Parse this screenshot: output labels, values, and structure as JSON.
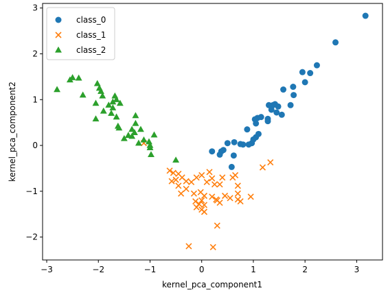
{
  "chart_data": {
    "type": "scatter",
    "title": "",
    "xlabel": "kernel_pca_component1",
    "ylabel": "kernel_pca_component2",
    "xlim": [
      -3.08,
      3.5
    ],
    "ylim": [
      -2.5,
      3.1
    ],
    "xticks": [
      -3,
      -2,
      -1,
      0,
      1,
      2,
      3
    ],
    "yticks": [
      -2,
      -1,
      0,
      1,
      2,
      3
    ],
    "grid": false,
    "legend_position": "top-left",
    "series": [
      {
        "name": "class_0",
        "marker": "circle",
        "color": "#1f77b4",
        "points": [
          [
            3.17,
            2.83
          ],
          [
            2.59,
            2.25
          ],
          [
            2.23,
            1.75
          ],
          [
            2.1,
            1.58
          ],
          [
            1.95,
            1.6
          ],
          [
            2.0,
            1.38
          ],
          [
            1.77,
            1.28
          ],
          [
            1.58,
            1.22
          ],
          [
            1.78,
            1.1
          ],
          [
            1.72,
            0.88
          ],
          [
            1.42,
            0.9
          ],
          [
            1.38,
            0.88
          ],
          [
            1.3,
            0.88
          ],
          [
            1.48,
            0.85
          ],
          [
            1.35,
            0.78
          ],
          [
            1.45,
            0.72
          ],
          [
            1.55,
            0.67
          ],
          [
            1.28,
            0.58
          ],
          [
            1.28,
            0.53
          ],
          [
            1.15,
            0.62
          ],
          [
            1.08,
            0.6
          ],
          [
            1.03,
            0.57
          ],
          [
            1.05,
            0.48
          ],
          [
            0.88,
            0.35
          ],
          [
            1.1,
            0.25
          ],
          [
            1.05,
            0.18
          ],
          [
            1.0,
            0.13
          ],
          [
            0.97,
            0.05
          ],
          [
            0.91,
            0.02
          ],
          [
            0.8,
            0.02
          ],
          [
            0.75,
            0.03
          ],
          [
            0.63,
            0.07
          ],
          [
            0.5,
            0.05
          ],
          [
            0.42,
            -0.1
          ],
          [
            0.38,
            -0.13
          ],
          [
            0.35,
            -0.2
          ],
          [
            0.62,
            -0.22
          ],
          [
            0.58,
            -0.47
          ],
          [
            0.2,
            -0.13
          ]
        ]
      },
      {
        "name": "class_1",
        "marker": "x",
        "color": "#ff7f0e",
        "points": [
          [
            1.33,
            -0.37
          ],
          [
            1.18,
            -0.48
          ],
          [
            -1.12,
            0.05
          ],
          [
            -0.62,
            -0.55
          ],
          [
            -0.55,
            -0.6
          ],
          [
            -0.45,
            -0.62
          ],
          [
            -0.38,
            -0.7
          ],
          [
            -0.5,
            -0.75
          ],
          [
            -0.58,
            -0.78
          ],
          [
            -0.3,
            -0.78
          ],
          [
            -0.2,
            -0.8
          ],
          [
            -0.1,
            -0.7
          ],
          [
            0.0,
            -0.65
          ],
          [
            0.15,
            -0.58
          ],
          [
            0.2,
            -0.72
          ],
          [
            0.1,
            -0.8
          ],
          [
            0.25,
            -0.85
          ],
          [
            0.35,
            -0.85
          ],
          [
            0.4,
            -0.7
          ],
          [
            0.6,
            -0.7
          ],
          [
            0.65,
            -0.65
          ],
          [
            0.7,
            -0.88
          ],
          [
            -0.45,
            -0.88
          ],
          [
            -0.3,
            -0.95
          ],
          [
            -0.4,
            -1.05
          ],
          [
            -0.15,
            -1.05
          ],
          [
            0.05,
            -1.1
          ],
          [
            0.0,
            -1.2
          ],
          [
            -0.05,
            -1.28
          ],
          [
            0.05,
            -1.3
          ],
          [
            -0.1,
            -1.35
          ],
          [
            0.0,
            -1.4
          ],
          [
            0.05,
            -1.45
          ],
          [
            0.2,
            -1.12
          ],
          [
            0.3,
            -1.2
          ],
          [
            0.35,
            -1.25
          ],
          [
            0.45,
            -1.1
          ],
          [
            0.55,
            -1.15
          ],
          [
            0.7,
            -1.05
          ],
          [
            0.7,
            -1.18
          ],
          [
            0.75,
            -1.22
          ],
          [
            0.95,
            -1.12
          ],
          [
            0.3,
            -1.75
          ],
          [
            -0.25,
            -2.2
          ],
          [
            0.22,
            -2.22
          ],
          [
            0.28,
            -1.18
          ],
          [
            -0.12,
            -1.22
          ],
          [
            -0.02,
            -1.02
          ]
        ]
      },
      {
        "name": "class_2",
        "marker": "triangle",
        "color": "#2ca02c",
        "points": [
          [
            -2.8,
            1.22
          ],
          [
            -2.5,
            1.48
          ],
          [
            -2.55,
            1.43
          ],
          [
            -2.38,
            1.47
          ],
          [
            -2.3,
            1.1
          ],
          [
            -2.02,
            1.35
          ],
          [
            -1.98,
            1.25
          ],
          [
            -1.95,
            1.18
          ],
          [
            -1.92,
            1.08
          ],
          [
            -2.05,
            0.92
          ],
          [
            -1.9,
            0.75
          ],
          [
            -2.05,
            0.58
          ],
          [
            -1.8,
            0.88
          ],
          [
            -1.72,
            0.95
          ],
          [
            -1.68,
            1.08
          ],
          [
            -1.65,
            1.0
          ],
          [
            -1.58,
            0.92
          ],
          [
            -1.72,
            0.82
          ],
          [
            -1.75,
            0.7
          ],
          [
            -1.65,
            0.62
          ],
          [
            -1.62,
            0.42
          ],
          [
            -1.6,
            0.38
          ],
          [
            -1.35,
            0.35
          ],
          [
            -1.3,
            0.28
          ],
          [
            -1.28,
            0.48
          ],
          [
            -1.28,
            0.65
          ],
          [
            -1.35,
            0.2
          ],
          [
            -1.42,
            0.22
          ],
          [
            -1.5,
            0.15
          ],
          [
            -1.18,
            0.35
          ],
          [
            -1.12,
            0.12
          ],
          [
            -1.02,
            0.08
          ],
          [
            -1.0,
            0.0
          ],
          [
            -1.0,
            -0.05
          ],
          [
            -0.98,
            -0.2
          ],
          [
            -0.92,
            0.23
          ],
          [
            -0.5,
            -0.32
          ],
          [
            -1.22,
            0.05
          ]
        ]
      }
    ]
  }
}
